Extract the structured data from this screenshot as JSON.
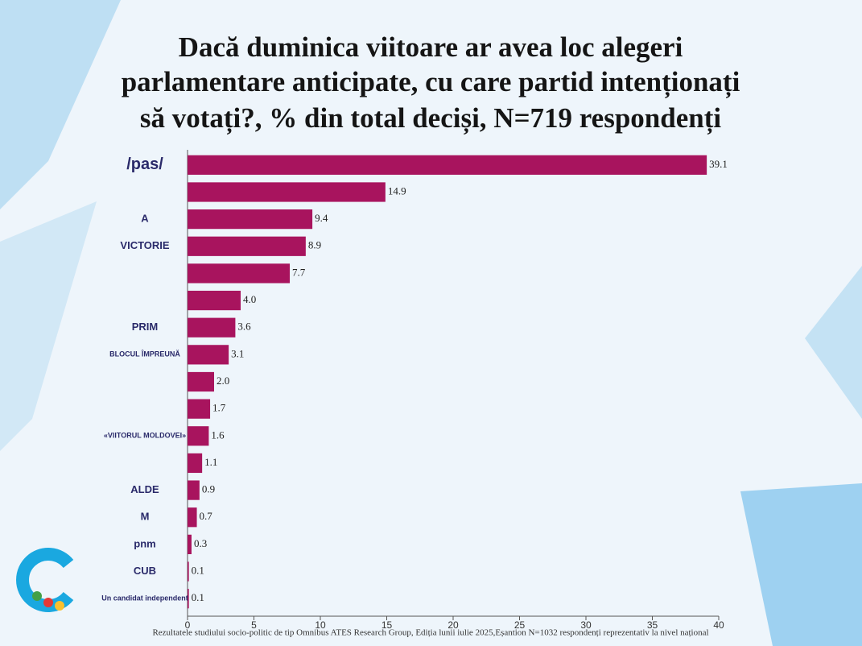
{
  "chart_data": {
    "type": "bar",
    "orientation": "horizontal",
    "title": "Dacă duminica viitoare ar avea loc alegeri parlamentare anticipate, cu care partid intenționați să votați?, % din total deciși,  N=719 respondenți",
    "title_lines": [
      "Dacă duminica viitoare ar avea loc alegeri",
      "parlamentare anticipate, cu care partid intenționați",
      "să votați?, % din total deciși,  N=719 respondenți"
    ],
    "categories": [
      "/pas/",
      null,
      "A",
      "VICTORIE",
      null,
      null,
      "PRIM",
      "BLOCUL ÎMPREUNĂ",
      null,
      null,
      "«VIITORUL MOLDOVEI»",
      null,
      "ALDE",
      "M",
      "pnm",
      "CUB",
      "Un candidat independent"
    ],
    "values": [
      39.1,
      14.9,
      9.4,
      8.9,
      7.7,
      4.0,
      3.6,
      3.1,
      2.0,
      1.7,
      1.6,
      1.1,
      0.9,
      0.7,
      0.3,
      0.1,
      0.1
    ],
    "value_labels": [
      "39.1",
      "14.9",
      "9.4",
      "8.9",
      "7.7",
      "4.0",
      "3.6",
      "3.1",
      "2.0",
      "1.7",
      "1.6",
      "1.1",
      "0.9",
      "0.7",
      "0.3",
      "0.1",
      "0.1"
    ],
    "color": "#a8145e",
    "xlim": [
      0,
      40
    ],
    "xticks": [
      0,
      5,
      10,
      15,
      20,
      25,
      30,
      35,
      40
    ],
    "note": "Rezultatele studiului socio-politic de tip Omnibus ATES Research Group, Ediția lunii iulie 2025,Eșantion N=1032 respondenți reprezentativ la nivel național"
  }
}
